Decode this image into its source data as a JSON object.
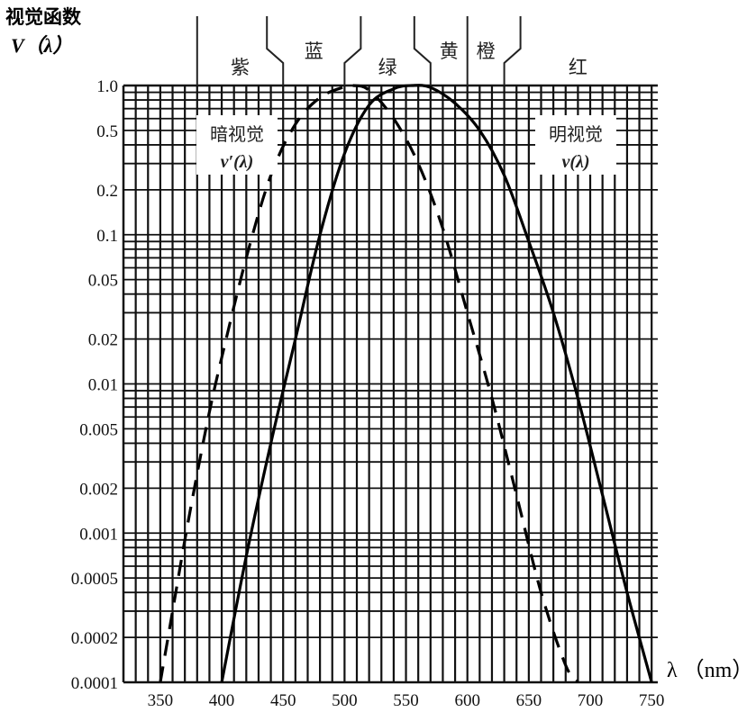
{
  "chart_data": {
    "type": "line",
    "title": "",
    "ylabel_line1": "视觉函数",
    "ylabel_line2": "V（λ）",
    "xlabel": "λ （nm）",
    "x_ticks": [
      350,
      400,
      450,
      500,
      550,
      600,
      650,
      700,
      750
    ],
    "y_ticks": [
      1.0,
      0.5,
      0.2,
      0.1,
      0.05,
      0.02,
      0.01,
      0.005,
      0.002,
      0.001,
      0.0005,
      0.0002,
      0.0001
    ],
    "y_tick_labels": [
      "1.0",
      "0.5",
      "0.2",
      "0.1",
      "0.05",
      "0.02",
      "0.01",
      "0.005",
      "0.002",
      "0.001",
      "0.0005",
      "0.0002",
      "0.0001"
    ],
    "xlim": [
      320,
      755
    ],
    "ylim": [
      0.0001,
      1.0
    ],
    "yscale": "log",
    "grid": true,
    "color_bands": [
      {
        "label": "紫",
        "from": 380,
        "to": 450
      },
      {
        "label": "蓝",
        "from": 450,
        "to": 500
      },
      {
        "label": "绿",
        "from": 500,
        "to": 570
      },
      {
        "label": "黄",
        "from": 570,
        "to": 600
      },
      {
        "label": "橙",
        "from": 600,
        "to": 630
      },
      {
        "label": "红",
        "from": 630,
        "to": 750
      }
    ],
    "series": [
      {
        "name": "暗视觉",
        "name_formula": "v′(λ)",
        "style": "dashed",
        "x": [
          350,
          360,
          370,
          380,
          390,
          400,
          420,
          440,
          460,
          480,
          500,
          507,
          520,
          540,
          560,
          580,
          600,
          620,
          640,
          660,
          680,
          690
        ],
        "y": [
          0.0001,
          0.0003,
          0.0009,
          0.0025,
          0.0065,
          0.015,
          0.07,
          0.25,
          0.55,
          0.83,
          0.98,
          1.0,
          0.93,
          0.6,
          0.3,
          0.11,
          0.03,
          0.008,
          0.0018,
          0.0004,
          0.00013,
          0.0001
        ]
      },
      {
        "name": "明视觉",
        "name_formula": "v(λ)",
        "style": "solid",
        "x": [
          400,
          420,
          440,
          460,
          480,
          500,
          520,
          540,
          555,
          570,
          590,
          610,
          630,
          650,
          670,
          690,
          710,
          730,
          750
        ],
        "y": [
          0.0001,
          0.0007,
          0.004,
          0.02,
          0.1,
          0.35,
          0.74,
          0.95,
          1.0,
          0.97,
          0.76,
          0.5,
          0.25,
          0.09,
          0.03,
          0.008,
          0.0018,
          0.0004,
          0.0001
        ]
      }
    ]
  }
}
